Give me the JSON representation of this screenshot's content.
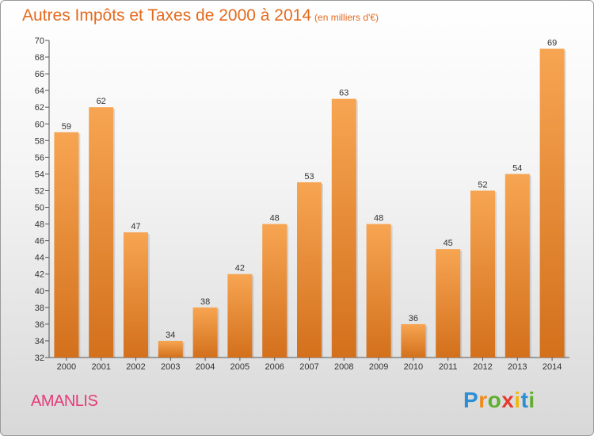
{
  "chart_data": {
    "type": "bar",
    "title": "Autres Impôts et Taxes de 2000 à 2014",
    "subtitle": "(en milliers d'€)",
    "categories": [
      "2000",
      "2001",
      "2002",
      "2003",
      "2004",
      "2005",
      "2006",
      "2007",
      "2008",
      "2009",
      "2010",
      "2011",
      "2012",
      "2013",
      "2014"
    ],
    "values": [
      59,
      62,
      47,
      34,
      38,
      42,
      48,
      53,
      63,
      48,
      36,
      45,
      52,
      54,
      69
    ],
    "ylim": [
      32,
      70
    ],
    "yticks": [
      32,
      34,
      36,
      38,
      40,
      42,
      44,
      46,
      48,
      50,
      52,
      54,
      56,
      58,
      60,
      62,
      64,
      66,
      68,
      70
    ],
    "xlabel": "",
    "ylabel": "",
    "grid": false,
    "bar_color_light": "#f7a552",
    "bar_color_dark": "#d3701c"
  },
  "footer": {
    "city": "AMANLIS",
    "brand": "Proxiti"
  }
}
